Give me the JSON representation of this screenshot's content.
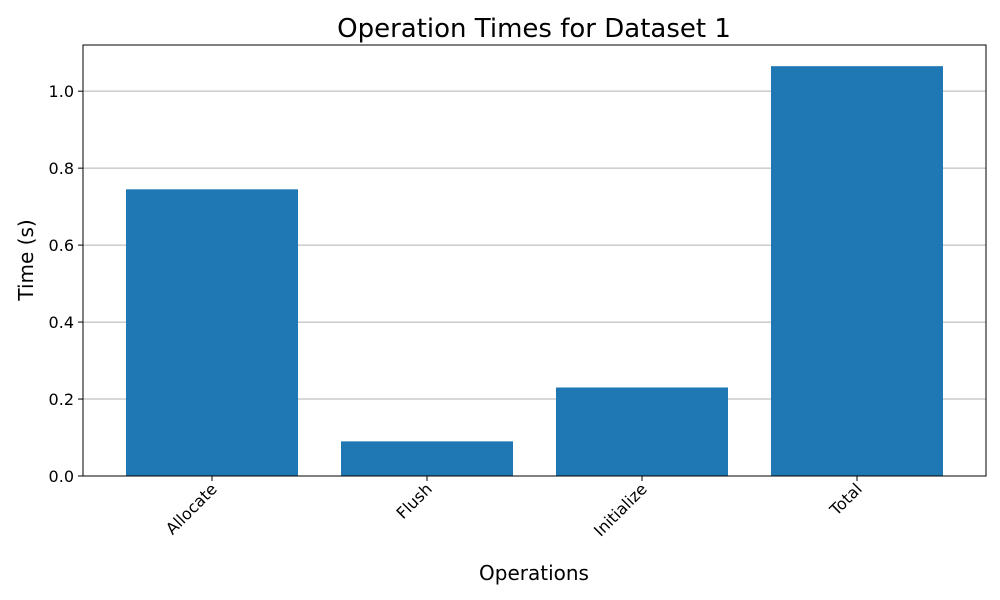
{
  "chart_data": {
    "type": "bar",
    "title": "Operation Times for Dataset 1",
    "xlabel": "Operations",
    "ylabel": "Time (s)",
    "categories": [
      "Allocate",
      "Flush",
      "Initialize",
      "Total"
    ],
    "values": [
      0.745,
      0.09,
      0.23,
      1.065
    ],
    "ylim": [
      0,
      1.12
    ],
    "yticks": [
      0.0,
      0.2,
      0.4,
      0.6,
      0.8,
      1.0
    ],
    "ytick_labels": [
      "0.0",
      "0.2",
      "0.4",
      "0.6",
      "0.8",
      "1.0"
    ],
    "grid": "y",
    "bar_color": "#1f77b4"
  }
}
